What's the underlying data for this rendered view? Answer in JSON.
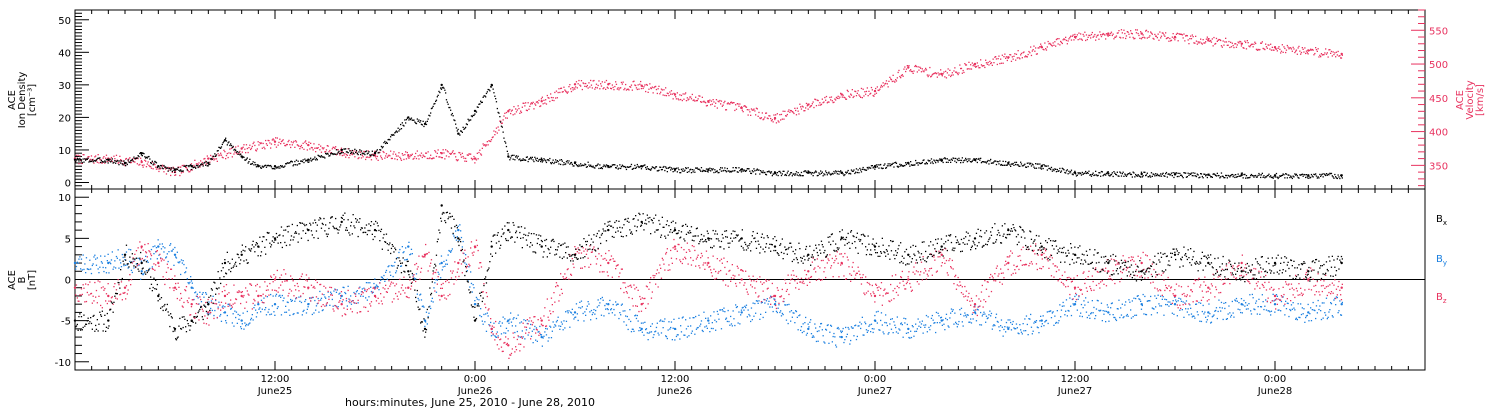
{
  "chart_data": [
    {
      "type": "scatter",
      "panel": "top",
      "ylabel_lines": [
        "ACE",
        "Ion Density",
        "[cm⁻³]"
      ],
      "ylim": [
        -2,
        53
      ],
      "yticks": [
        0,
        10,
        20,
        30,
        40,
        50
      ],
      "y2label_lines": [
        "ACE",
        "Velocity",
        "[km/s]"
      ],
      "y2lim": [
        315,
        580
      ],
      "y2ticks": [
        350,
        400,
        450,
        500,
        550
      ],
      "colors": {
        "density": "#000000",
        "velocity": "#e8325f"
      },
      "series": [
        {
          "key": "density",
          "axis": "left",
          "x_hours": [
            0,
            2,
            3,
            4,
            5,
            6,
            7,
            8,
            9,
            10,
            11,
            12,
            14,
            16,
            18,
            20,
            21,
            22,
            23,
            24,
            25,
            26,
            28,
            30,
            32,
            34,
            36,
            38,
            40,
            42,
            44,
            46,
            48,
            50,
            52,
            54,
            56,
            58,
            60,
            62,
            64,
            66,
            68,
            70,
            72,
            74,
            76
          ],
          "values": [
            7,
            7,
            6,
            9,
            5,
            4,
            5,
            6,
            13,
            8,
            5,
            5,
            7,
            10,
            9,
            20,
            18,
            30,
            15,
            22,
            30,
            8,
            7,
            6,
            5,
            5,
            4,
            4,
            4,
            3,
            3,
            3,
            5,
            6,
            7,
            7,
            6,
            5,
            3,
            2.8,
            2.6,
            2.5,
            2.4,
            2.3,
            2.2,
            2.2,
            2.2
          ]
        },
        {
          "key": "velocity",
          "axis": "right",
          "x_hours": [
            0,
            2,
            4,
            6,
            8,
            10,
            12,
            14,
            16,
            18,
            20,
            22,
            24,
            26,
            28,
            30,
            32,
            34,
            36,
            38,
            40,
            42,
            44,
            46,
            48,
            50,
            52,
            54,
            56,
            58,
            60,
            62,
            64,
            66,
            68,
            70,
            72,
            74,
            76
          ],
          "values": [
            360,
            360,
            355,
            340,
            360,
            375,
            385,
            380,
            370,
            365,
            365,
            368,
            360,
            430,
            445,
            470,
            470,
            468,
            455,
            445,
            435,
            420,
            440,
            455,
            460,
            495,
            485,
            500,
            510,
            525,
            540,
            545,
            545,
            540,
            535,
            530,
            525,
            520,
            515
          ]
        }
      ]
    },
    {
      "type": "scatter",
      "panel": "bottom",
      "ylabel_lines": [
        "ACE",
        "B",
        "[nT]"
      ],
      "ylim": [
        -11,
        11
      ],
      "yticks": [
        -10,
        -5,
        0,
        5,
        10
      ],
      "zero_line": true,
      "legend_position": "right",
      "xlabel": "hours:minutes, June 25, 2010 - June 28, 2010",
      "x_start": "June 25, 2010 00:00 (approx. axis start)",
      "xlim_hours": [
        0,
        81
      ],
      "xtick_major_hours": [
        12,
        24,
        36,
        48,
        60,
        72
      ],
      "xticks": [
        {
          "time": "12:00",
          "date": "June25"
        },
        {
          "time": "0:00",
          "date": "June26"
        },
        {
          "time": "12:00",
          "date": "June26"
        },
        {
          "time": "0:00",
          "date": "June27"
        },
        {
          "time": "12:00",
          "date": "June27"
        },
        {
          "time": "0:00",
          "date": "June28"
        }
      ],
      "series": [
        {
          "name": "B",
          "sub": "x",
          "color": "#000000",
          "x_hours": [
            0,
            2,
            3,
            4,
            5,
            6,
            7,
            8,
            9,
            10,
            11,
            12,
            14,
            16,
            18,
            20,
            21,
            22,
            23,
            24,
            25,
            26,
            28,
            30,
            32,
            34,
            36,
            38,
            40,
            42,
            44,
            46,
            48,
            50,
            52,
            54,
            56,
            58,
            60,
            62,
            64,
            66,
            68,
            70,
            72,
            74,
            76
          ],
          "values": [
            -5,
            -5,
            3,
            2,
            -2,
            -6,
            -5,
            -3,
            2,
            3,
            4,
            5,
            6,
            7,
            6,
            1,
            -6,
            9,
            5,
            -5,
            4,
            6,
            4,
            3,
            6,
            7,
            6,
            5,
            5,
            4,
            3,
            5,
            4,
            3,
            4,
            5,
            6,
            4,
            3,
            2,
            1,
            3,
            2,
            1,
            2,
            1,
            2
          ]
        },
        {
          "name": "B",
          "sub": "y",
          "color": "#1a7fe0",
          "x_hours": [
            0,
            2,
            3,
            4,
            5,
            6,
            7,
            8,
            9,
            10,
            11,
            12,
            14,
            16,
            18,
            20,
            21,
            22,
            23,
            24,
            25,
            26,
            28,
            30,
            32,
            34,
            36,
            38,
            40,
            42,
            44,
            46,
            48,
            50,
            52,
            54,
            56,
            58,
            60,
            62,
            64,
            66,
            68,
            70,
            72,
            74,
            76
          ],
          "values": [
            2,
            2,
            3,
            1,
            4,
            3,
            -1,
            -3,
            -4,
            -5,
            -3,
            -3,
            -3,
            -2,
            -1,
            4,
            -5,
            2,
            6,
            -3,
            -6,
            -5,
            -7,
            -4,
            -3,
            -6,
            -6,
            -5,
            -4,
            -3,
            -6,
            -7,
            -5,
            -6,
            -5,
            -4,
            -6,
            -5,
            -3,
            -4,
            -3,
            -3,
            -4,
            -3,
            -3,
            -4,
            -3
          ]
        },
        {
          "name": "B",
          "sub": "z",
          "color": "#e8325f",
          "x_hours": [
            0,
            2,
            3,
            4,
            5,
            6,
            7,
            8,
            9,
            10,
            11,
            12,
            14,
            16,
            18,
            20,
            21,
            22,
            23,
            24,
            25,
            26,
            28,
            30,
            32,
            34,
            36,
            38,
            40,
            42,
            44,
            46,
            48,
            50,
            52,
            54,
            56,
            58,
            60,
            62,
            64,
            66,
            68,
            70,
            72,
            74,
            76
          ],
          "values": [
            -1,
            -2,
            -1,
            4,
            2,
            -1,
            -3,
            -4,
            -2,
            -2,
            -2,
            0,
            -1,
            -3,
            -2,
            -1,
            3,
            -2,
            2,
            4,
            -6,
            -8,
            -5,
            3,
            2,
            -3,
            4,
            2,
            0,
            -2,
            1,
            2,
            -2,
            0,
            3,
            -3,
            2,
            3,
            -1,
            1,
            2,
            -2,
            -1,
            2,
            -2,
            0,
            -1
          ]
        }
      ]
    }
  ]
}
